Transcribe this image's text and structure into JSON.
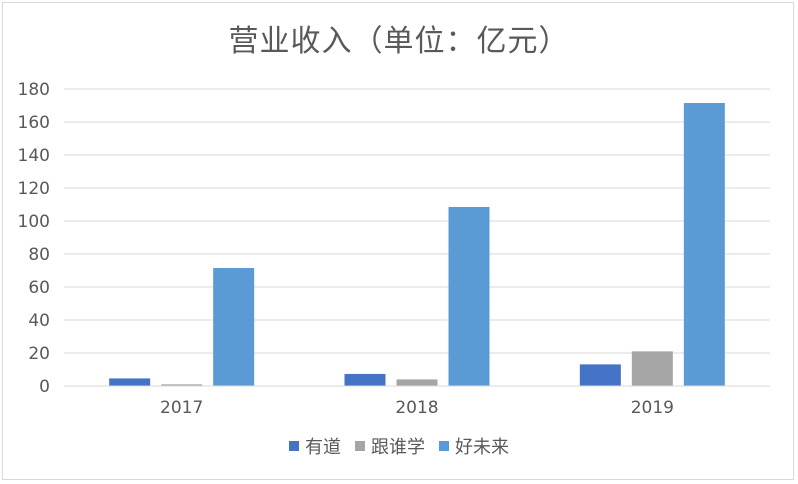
{
  "chart_data": {
    "type": "bar",
    "title": "营业收入（单位：亿元）",
    "categories": [
      "2017",
      "2018",
      "2019"
    ],
    "series": [
      {
        "name": "有道",
        "color": "#4472c4",
        "values": [
          4.6,
          7.3,
          13.1
        ]
      },
      {
        "name": "跟谁学",
        "color": "#a5a5a5",
        "values": [
          1.0,
          4.0,
          21.0
        ]
      },
      {
        "name": "好未来",
        "color": "#5b9bd5",
        "values": [
          71.5,
          108.5,
          171.5
        ]
      }
    ],
    "ylim": [
      0,
      180
    ],
    "yticks": [
      0,
      20,
      40,
      60,
      80,
      100,
      120,
      140,
      160,
      180
    ],
    "grid": true,
    "legend_position": "bottom",
    "xlabel": "",
    "ylabel": ""
  }
}
